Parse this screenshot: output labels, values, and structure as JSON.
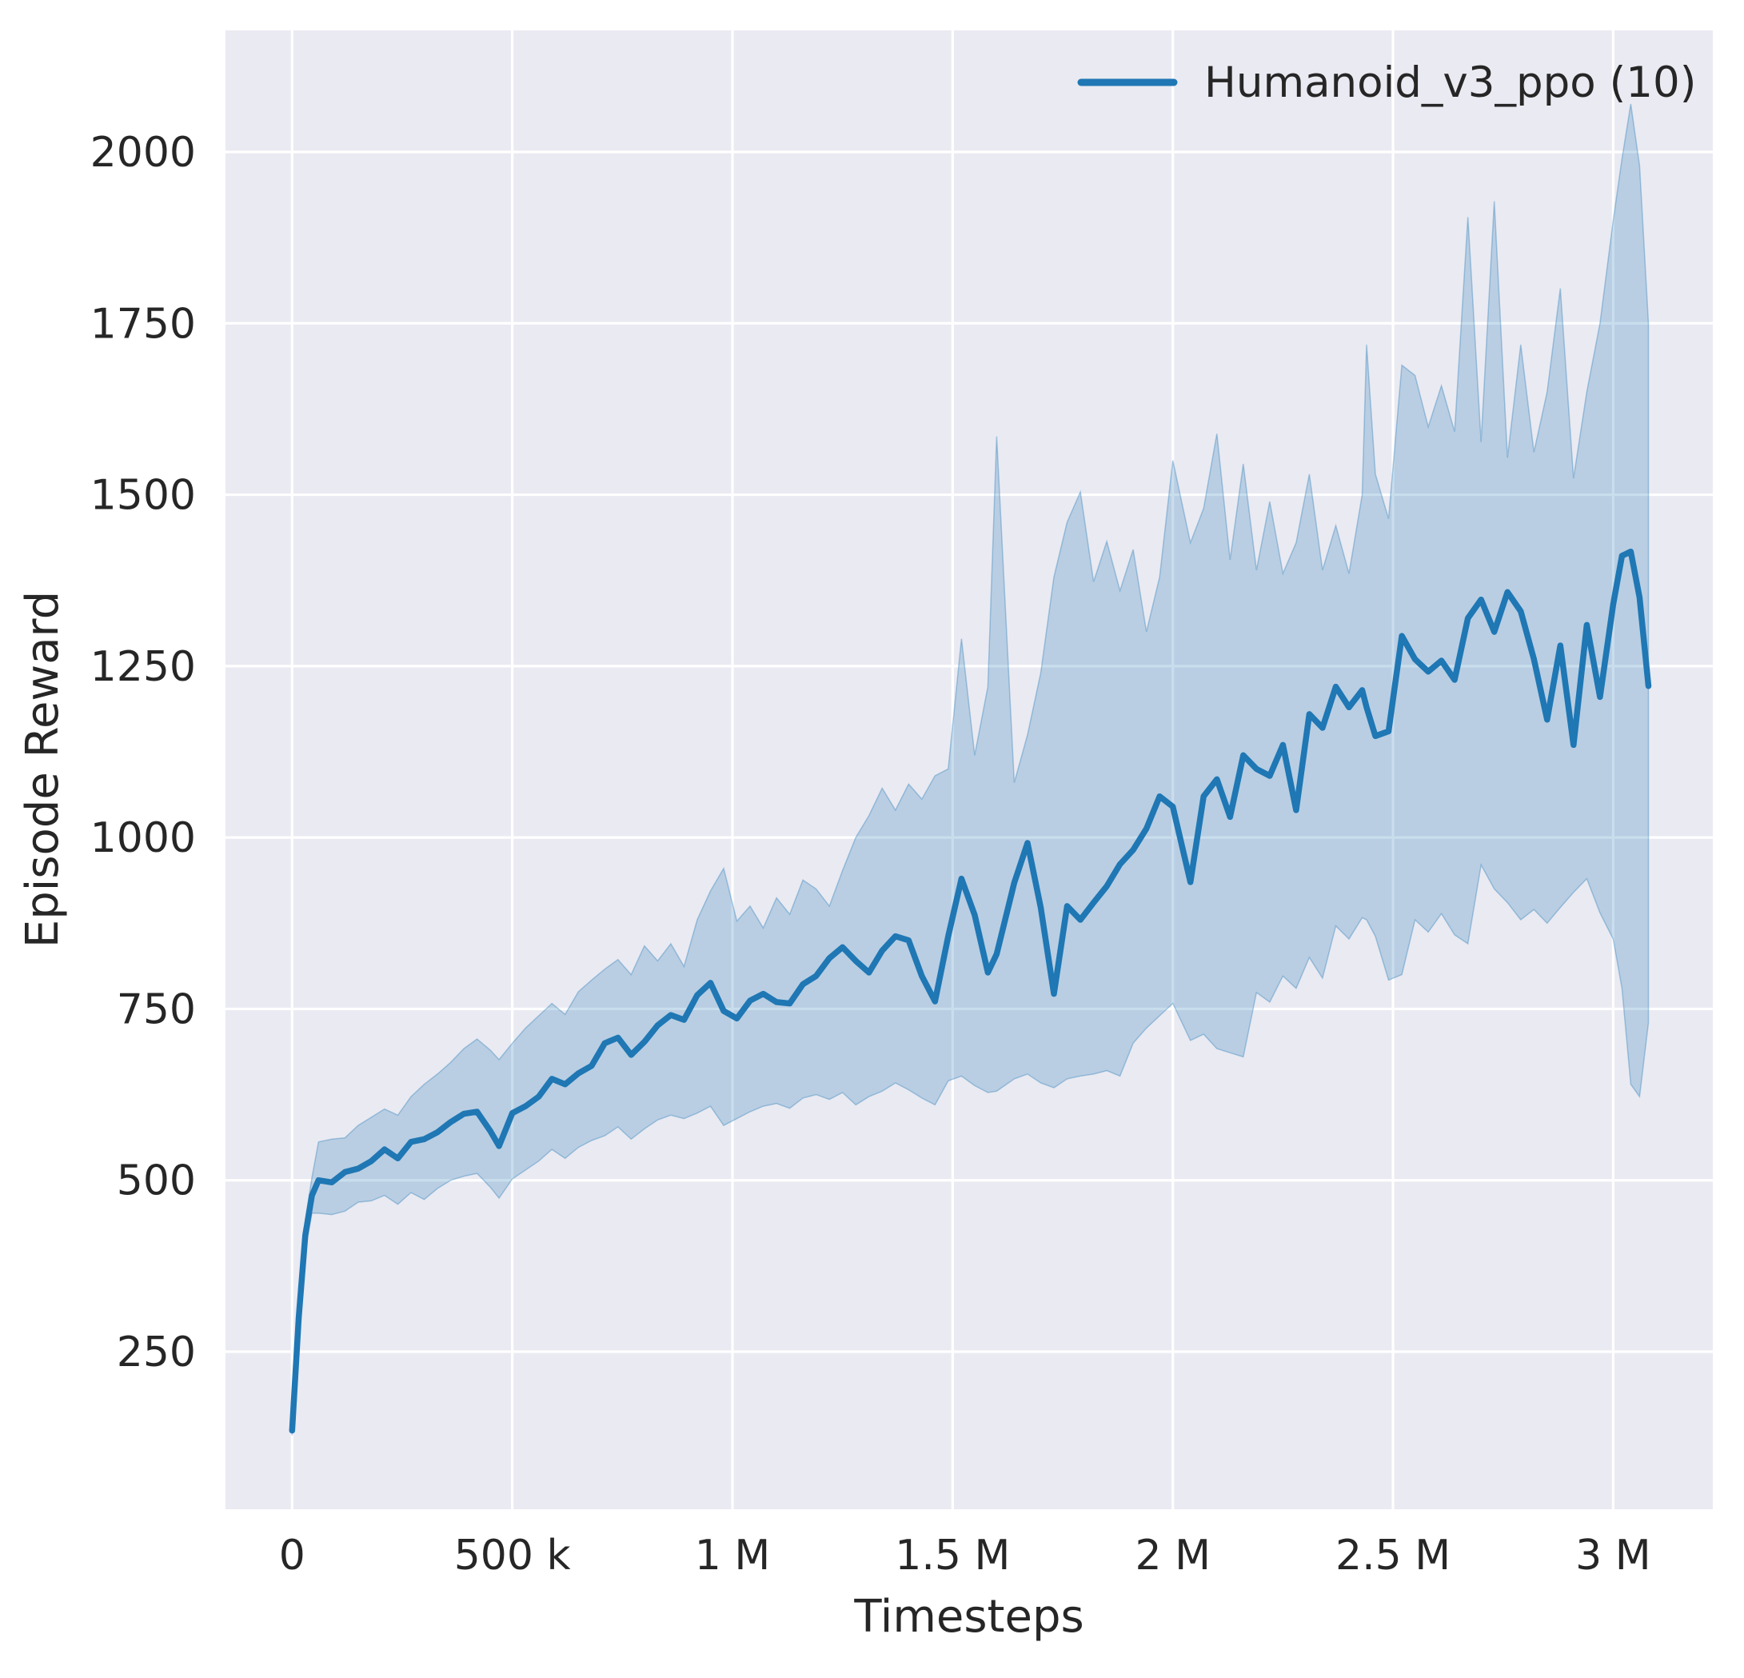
{
  "figure": {
    "background_color": "#ffffff",
    "plot_background_color": "#eaeaf2",
    "grid_color": "#ffffff",
    "text_color": "#262626"
  },
  "chart_data": {
    "type": "line",
    "title": "",
    "xlabel": "Timesteps",
    "ylabel": "Episode Reward",
    "grid": "on",
    "xlim": [
      -150000,
      3225000
    ],
    "ylim": [
      20,
      2180
    ],
    "x_ticks": [
      {
        "value": 0,
        "label": "0"
      },
      {
        "value": 500000,
        "label": "500 k"
      },
      {
        "value": 1000000,
        "label": "1 M"
      },
      {
        "value": 1500000,
        "label": "1.5 M"
      },
      {
        "value": 2000000,
        "label": "2 M"
      },
      {
        "value": 2500000,
        "label": "2.5 M"
      },
      {
        "value": 3000000,
        "label": "3 M"
      }
    ],
    "y_ticks": [
      {
        "value": 250,
        "label": "250"
      },
      {
        "value": 500,
        "label": "500"
      },
      {
        "value": 750,
        "label": "750"
      },
      {
        "value": 1000,
        "label": "1000"
      },
      {
        "value": 1250,
        "label": "1250"
      },
      {
        "value": 1500,
        "label": "1500"
      },
      {
        "value": 1750,
        "label": "1750"
      },
      {
        "value": 2000,
        "label": "2000"
      }
    ],
    "legend": {
      "position": "upper right",
      "entries": [
        {
          "label": "Humanoid_v3_ppo (10)",
          "color": "#1f77b4"
        }
      ]
    },
    "series": [
      {
        "name": "Humanoid_v3_ppo (10)",
        "line_color": "#1f77b4",
        "band_fill_color": "rgba(31,119,180,0.24)",
        "band_edge_color": "rgba(31,119,180,0.35)",
        "x": [
          0,
          15000,
          30000,
          45000,
          60000,
          90000,
          120000,
          150000,
          180000,
          210000,
          240000,
          270000,
          300000,
          330000,
          360000,
          390000,
          420000,
          450000,
          470000,
          500000,
          530000,
          560000,
          590000,
          620000,
          650000,
          680000,
          710000,
          740000,
          770000,
          800000,
          830000,
          860000,
          890000,
          920000,
          950000,
          980000,
          1010000,
          1040000,
          1070000,
          1100000,
          1130000,
          1160000,
          1190000,
          1220000,
          1250000,
          1280000,
          1310000,
          1340000,
          1370000,
          1400000,
          1430000,
          1460000,
          1490000,
          1520000,
          1550000,
          1580000,
          1600000,
          1640000,
          1670000,
          1700000,
          1730000,
          1760000,
          1790000,
          1820000,
          1850000,
          1880000,
          1910000,
          1940000,
          1970000,
          2000000,
          2040000,
          2070000,
          2100000,
          2130000,
          2160000,
          2190000,
          2220000,
          2250000,
          2280000,
          2310000,
          2340000,
          2370000,
          2400000,
          2430000,
          2440000,
          2460000,
          2490000,
          2520000,
          2550000,
          2580000,
          2610000,
          2640000,
          2670000,
          2700000,
          2730000,
          2760000,
          2790000,
          2820000,
          2850000,
          2880000,
          2910000,
          2940000,
          2970000,
          3000000,
          3020000,
          3040000,
          3060000,
          3080000
        ],
        "mean": [
          135,
          300,
          420,
          478,
          500,
          497,
          512,
          517,
          528,
          545,
          532,
          556,
          560,
          570,
          585,
          597,
          600,
          572,
          550,
          598,
          608,
          622,
          648,
          640,
          656,
          667,
          700,
          708,
          683,
          702,
          726,
          741,
          734,
          770,
          788,
          747,
          736,
          762,
          772,
          760,
          758,
          786,
          798,
          824,
          840,
          820,
          803,
          835,
          856,
          850,
          798,
          761,
          856,
          940,
          887,
          803,
          830,
          934,
          992,
          898,
          772,
          900,
          880,
          905,
          929,
          961,
          982,
          1013,
          1060,
          1045,
          935,
          1060,
          1085,
          1030,
          1120,
          1100,
          1090,
          1135,
          1040,
          1180,
          1160,
          1220,
          1190,
          1215,
          1190,
          1148,
          1155,
          1294,
          1260,
          1242,
          1258,
          1230,
          1320,
          1347,
          1300,
          1358,
          1330,
          1260,
          1172,
          1280,
          1135,
          1310,
          1205,
          1340,
          1411,
          1417,
          1350,
          1221
        ],
        "band_lower": [
          128,
          283,
          398,
          452,
          452,
          450,
          455,
          468,
          470,
          478,
          465,
          482,
          472,
          488,
          500,
          506,
          510,
          490,
          474,
          502,
          515,
          528,
          545,
          532,
          548,
          558,
          565,
          578,
          560,
          575,
          588,
          595,
          590,
          598,
          608,
          580,
          590,
          600,
          608,
          612,
          605,
          620,
          625,
          618,
          628,
          610,
          622,
          630,
          642,
          632,
          620,
          610,
          645,
          652,
          638,
          628,
          630,
          648,
          655,
          642,
          635,
          648,
          652,
          655,
          660,
          652,
          700,
          722,
          740,
          758,
          704,
          713,
          692,
          686,
          680,
          774,
          760,
          798,
          780,
          825,
          795,
          871,
          852,
          883,
          880,
          856,
          792,
          800,
          880,
          862,
          889,
          858,
          845,
          960,
          925,
          905,
          880,
          895,
          875,
          898,
          920,
          940,
          890,
          852,
          780,
          640,
          622,
          730
        ],
        "band_upper": [
          142,
          317,
          442,
          504,
          556,
          560,
          562,
          580,
          592,
          604,
          595,
          622,
          640,
          655,
          672,
          692,
          706,
          690,
          676,
          700,
          722,
          740,
          758,
          742,
          775,
          792,
          808,
          822,
          800,
          842,
          820,
          845,
          812,
          880,
          922,
          955,
          878,
          900,
          868,
          912,
          888,
          938,
          925,
          900,
          952,
          1000,
          1032,
          1072,
          1040,
          1078,
          1056,
          1090,
          1100,
          1290,
          1120,
          1220,
          1585,
          1080,
          1150,
          1240,
          1380,
          1460,
          1504,
          1373,
          1432,
          1360,
          1420,
          1300,
          1380,
          1550,
          1430,
          1480,
          1589,
          1405,
          1545,
          1390,
          1490,
          1385,
          1430,
          1530,
          1390,
          1455,
          1385,
          1500,
          1719,
          1530,
          1465,
          1689,
          1674,
          1599,
          1659,
          1592,
          1905,
          1577,
          1928,
          1554,
          1719,
          1562,
          1650,
          1801,
          1524,
          1650,
          1750,
          1900,
          1990,
          2070,
          1980,
          1750
        ]
      }
    ]
  }
}
